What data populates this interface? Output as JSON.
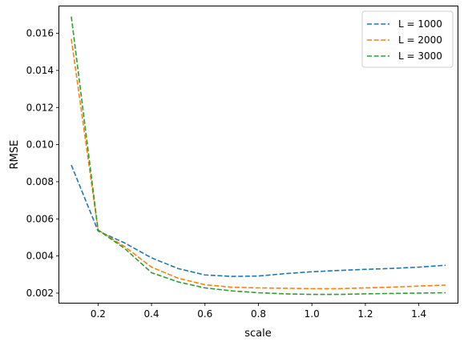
{
  "chart_data": {
    "type": "line",
    "title": "",
    "xlabel": "scale",
    "ylabel": "RMSE",
    "xlim": [
      0.055,
      1.545
    ],
    "ylim": [
      0.00148,
      0.01745
    ],
    "x_ticks": [
      0.2,
      0.4,
      0.6,
      0.8,
      1.0,
      1.2,
      1.4
    ],
    "x_tick_labels": [
      "0.2",
      "0.4",
      "0.6",
      "0.8",
      "1.0",
      "1.2",
      "1.4"
    ],
    "y_ticks": [
      0.002,
      0.004,
      0.006,
      0.008,
      0.01,
      0.012,
      0.014,
      0.016
    ],
    "y_tick_labels": [
      "0.002",
      "0.004",
      "0.006",
      "0.008",
      "0.010",
      "0.012",
      "0.014",
      "0.016"
    ],
    "grid": false,
    "legend_position": "top-right",
    "line_style": "dashed",
    "x": [
      0.1,
      0.2,
      0.3,
      0.4,
      0.5,
      0.6,
      0.7,
      0.8,
      0.9,
      1.0,
      1.1,
      1.2,
      1.3,
      1.4,
      1.5
    ],
    "series": [
      {
        "name": "L = 1000",
        "color": "#1f77b4",
        "values": [
          0.0089,
          0.00535,
          0.0047,
          0.0039,
          0.00332,
          0.00298,
          0.0029,
          0.00292,
          0.00305,
          0.00315,
          0.00322,
          0.00328,
          0.00333,
          0.0034,
          0.0035
        ]
      },
      {
        "name": "L = 2000",
        "color": "#ff7f0e",
        "values": [
          0.0157,
          0.0054,
          0.0045,
          0.0034,
          0.0028,
          0.00245,
          0.00232,
          0.00228,
          0.00226,
          0.00224,
          0.00224,
          0.00228,
          0.00232,
          0.00238,
          0.00243
        ]
      },
      {
        "name": "L = 3000",
        "color": "#2ca02c",
        "values": [
          0.0169,
          0.0054,
          0.0044,
          0.0031,
          0.0026,
          0.00228,
          0.00212,
          0.00202,
          0.00196,
          0.00193,
          0.00193,
          0.00196,
          0.00198,
          0.002,
          0.00202
        ]
      }
    ]
  }
}
